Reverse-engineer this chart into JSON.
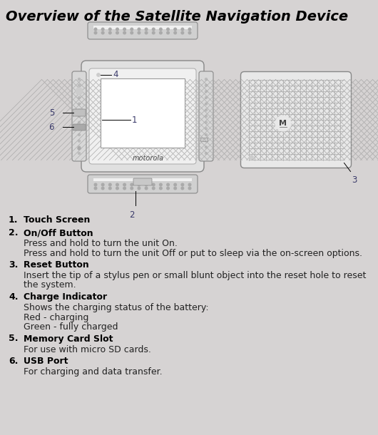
{
  "title": "Overview of the Satellite Navigation Device",
  "bg_color": "#d6d3d3",
  "title_fontsize": 14,
  "items": [
    {
      "num": "1.",
      "label": "Touch Screen",
      "desc": ""
    },
    {
      "num": "2.",
      "label": "On/Off Button",
      "desc": "Press and hold to turn the unit On.\nPress and hold to turn the unit Off or put to sleep via the on-screen options."
    },
    {
      "num": "3.",
      "label": "Reset Button",
      "desc": "Insert the tip of a stylus pen or small blunt object into the reset hole to reset\nthe system."
    },
    {
      "num": "4.",
      "label": "Charge Indicator",
      "desc": "Shows the charging status of the battery:\nRed - charging\nGreen - fully charged"
    },
    {
      "num": "5.",
      "label": "Memory Card Slot",
      "desc": "For use with micro SD cards."
    },
    {
      "num": "6.",
      "label": "USB Port",
      "desc": "For charging and data transfer."
    }
  ],
  "label_fontsize": 9.0,
  "desc_fontsize": 9.0,
  "label_color_num": "#3a3a6a",
  "label_color_text": "#3a3a6a",
  "desc_color": "#3a3a3a",
  "diagram_label_color": "#3a3a6a"
}
